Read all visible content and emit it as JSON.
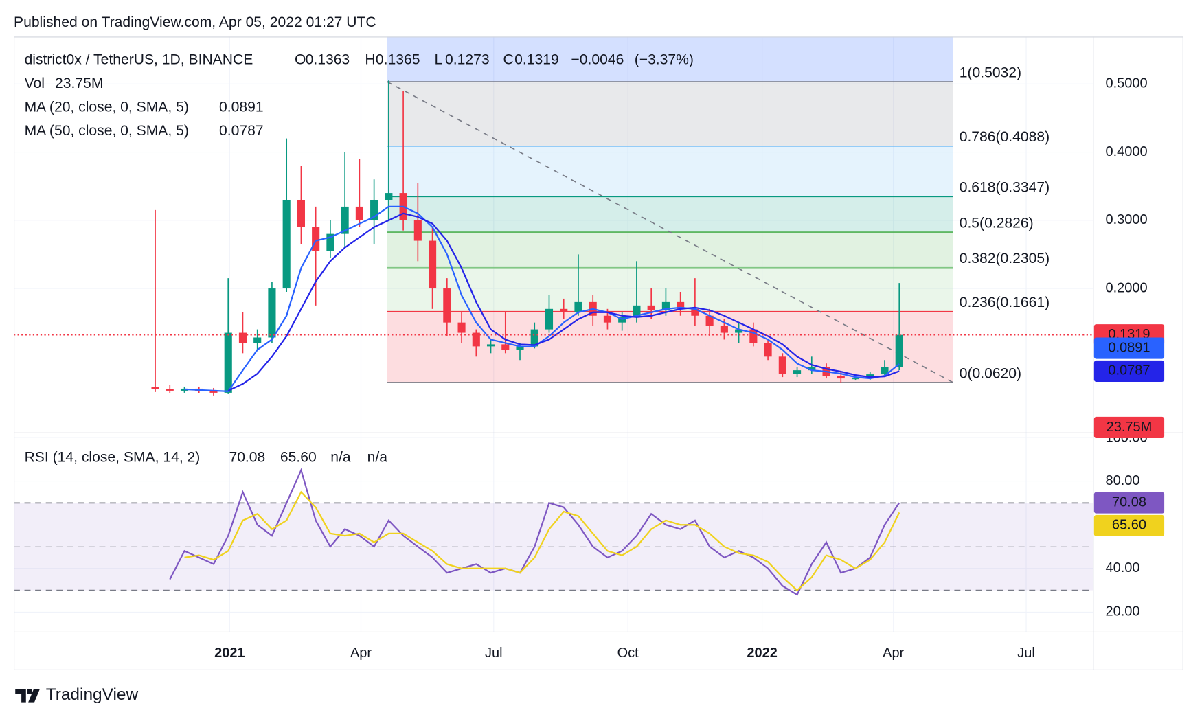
{
  "chart_data": {
    "type": "candlestick",
    "title": "Published on TradingView.com, Apr 05, 2022 01:27 UTC",
    "legend": {
      "symbol": "district0x / TetherUS, 1D, BINANCE",
      "o_label": "O",
      "open": 0.1363,
      "h_label": "H",
      "high": 0.1365,
      "l_label": "L",
      "low": 0.1273,
      "c_label": "C",
      "close": 0.1319,
      "change": {
        "value": -0.0046,
        "label": "−0.0046"
      },
      "change_percent": {
        "value": -3.37,
        "label": "(−3.37%)"
      },
      "volume_name": "Vol",
      "volume": {
        "value": 23750000,
        "label": "23.75M"
      }
    },
    "x": [
      "2020-11-11",
      "2020-11-21",
      "2020-12-01",
      "2020-12-11",
      "2020-12-21",
      "2020-12-31",
      "2021-01-10",
      "2021-01-20",
      "2021-01-30",
      "2021-02-09",
      "2021-02-19",
      "2021-03-01",
      "2021-03-11",
      "2021-03-21",
      "2021-03-31",
      "2021-04-10",
      "2021-04-20",
      "2021-04-30",
      "2021-05-10",
      "2021-05-20",
      "2021-05-30",
      "2021-06-09",
      "2021-06-19",
      "2021-06-29",
      "2021-07-09",
      "2021-07-19",
      "2021-07-29",
      "2021-08-08",
      "2021-08-18",
      "2021-08-28",
      "2021-09-07",
      "2021-09-17",
      "2021-09-27",
      "2021-10-07",
      "2021-10-17",
      "2021-10-27",
      "2021-11-06",
      "2021-11-16",
      "2021-11-26",
      "2021-12-06",
      "2021-12-16",
      "2021-12-26",
      "2022-01-05",
      "2022-01-15",
      "2022-01-25",
      "2022-02-04",
      "2022-02-14",
      "2022-02-24",
      "2022-03-06",
      "2022-03-16",
      "2022-03-26",
      "2022-04-05"
    ],
    "open": [
      0.055,
      0.052,
      0.05,
      0.053,
      0.049,
      0.047,
      0.135,
      0.12,
      0.128,
      0.2,
      0.33,
      0.29,
      0.255,
      0.28,
      0.32,
      0.3,
      0.33,
      0.34,
      0.3,
      0.27,
      0.2,
      0.15,
      0.135,
      0.115,
      0.118,
      0.11,
      0.115,
      0.14,
      0.17,
      0.165,
      0.18,
      0.16,
      0.15,
      0.158,
      0.175,
      0.168,
      0.18,
      0.17,
      0.16,
      0.145,
      0.135,
      0.14,
      0.12,
      0.1,
      0.075,
      0.08,
      0.085,
      0.072,
      0.068,
      0.068,
      0.074,
      0.085
    ],
    "high": [
      0.315,
      0.058,
      0.056,
      0.056,
      0.054,
      0.215,
      0.165,
      0.14,
      0.21,
      0.42,
      0.38,
      0.32,
      0.3,
      0.4,
      0.39,
      0.36,
      0.505,
      0.49,
      0.355,
      0.29,
      0.215,
      0.165,
      0.14,
      0.125,
      0.165,
      0.12,
      0.15,
      0.19,
      0.185,
      0.25,
      0.19,
      0.17,
      0.165,
      0.24,
      0.2,
      0.2,
      0.195,
      0.215,
      0.17,
      0.155,
      0.15,
      0.15,
      0.125,
      0.105,
      0.085,
      0.1,
      0.09,
      0.078,
      0.072,
      0.078,
      0.095,
      0.208
    ],
    "low": [
      0.048,
      0.046,
      0.047,
      0.046,
      0.043,
      0.045,
      0.105,
      0.108,
      0.12,
      0.195,
      0.265,
      0.175,
      0.245,
      0.26,
      0.29,
      0.265,
      0.3,
      0.285,
      0.24,
      0.17,
      0.13,
      0.12,
      0.1,
      0.105,
      0.105,
      0.095,
      0.112,
      0.135,
      0.155,
      0.16,
      0.145,
      0.14,
      0.138,
      0.15,
      0.155,
      0.16,
      0.16,
      0.145,
      0.13,
      0.125,
      0.12,
      0.115,
      0.095,
      0.07,
      0.07,
      0.075,
      0.068,
      0.062,
      0.065,
      0.066,
      0.072,
      0.08
    ],
    "close": [
      0.052,
      0.05,
      0.053,
      0.049,
      0.047,
      0.135,
      0.12,
      0.128,
      0.2,
      0.33,
      0.29,
      0.255,
      0.28,
      0.32,
      0.3,
      0.33,
      0.34,
      0.3,
      0.27,
      0.2,
      0.15,
      0.135,
      0.115,
      0.118,
      0.11,
      0.115,
      0.14,
      0.17,
      0.165,
      0.18,
      0.16,
      0.15,
      0.158,
      0.175,
      0.168,
      0.18,
      0.17,
      0.16,
      0.145,
      0.135,
      0.14,
      0.12,
      0.1,
      0.075,
      0.08,
      0.085,
      0.072,
      0.068,
      0.068,
      0.074,
      0.085,
      0.1319
    ],
    "up_color": "#089981",
    "down_color": "#f23645",
    "series": [
      {
        "name": "MA (20, close, 0, SMA, 5)",
        "color": "#2962ff",
        "values": [
          null,
          null,
          0.052,
          0.051,
          0.05,
          0.049,
          0.08,
          0.11,
          0.125,
          0.16,
          0.23,
          0.27,
          0.275,
          0.285,
          0.295,
          0.305,
          0.32,
          0.32,
          0.31,
          0.29,
          0.25,
          0.19,
          0.15,
          0.125,
          0.12,
          0.115,
          0.115,
          0.13,
          0.15,
          0.165,
          0.17,
          0.165,
          0.155,
          0.16,
          0.165,
          0.17,
          0.172,
          0.17,
          0.16,
          0.15,
          0.14,
          0.135,
          0.125,
          0.11,
          0.09,
          0.08,
          0.078,
          0.075,
          0.07,
          0.068,
          0.072,
          0.0891
        ]
      },
      {
        "name": "MA (50, close, 0, SMA, 5)",
        "color": "#2424e8",
        "values": [
          null,
          null,
          null,
          null,
          null,
          0.05,
          0.06,
          0.075,
          0.1,
          0.13,
          0.17,
          0.21,
          0.24,
          0.26,
          0.275,
          0.29,
          0.3,
          0.31,
          0.305,
          0.295,
          0.27,
          0.23,
          0.18,
          0.14,
          0.125,
          0.118,
          0.117,
          0.125,
          0.14,
          0.155,
          0.165,
          0.165,
          0.16,
          0.158,
          0.16,
          0.165,
          0.17,
          0.172,
          0.168,
          0.16,
          0.15,
          0.14,
          0.13,
          0.118,
          0.1,
          0.088,
          0.082,
          0.078,
          0.073,
          0.07,
          0.071,
          0.0787
        ]
      }
    ],
    "xlim": [
      "2020-08-06",
      "2022-08-16"
    ],
    "xticks": [
      {
        "value": "2021-01-01",
        "label": "2021"
      },
      {
        "value": "2021-04-01",
        "label": "Apr"
      },
      {
        "value": "2021-07-01",
        "label": "Jul"
      },
      {
        "value": "2021-10-01",
        "label": "Oct"
      },
      {
        "value": "2022-01-01",
        "label": "2022"
      },
      {
        "value": "2022-04-01",
        "label": "Apr"
      },
      {
        "value": "2022-07-01",
        "label": "Jul"
      }
    ],
    "ylim": [
      -0.0118,
      0.5694
    ],
    "yticks": [
      {
        "value": 0.2,
        "label": "0.2000"
      },
      {
        "value": 0.3,
        "label": "0.3000"
      },
      {
        "value": 0.4,
        "label": "0.4000"
      },
      {
        "value": 0.5,
        "label": "0.5000"
      }
    ],
    "grid": true,
    "fibonacci": {
      "start": "2021-04-19",
      "end": "2022-05-12",
      "extension_color": "#2962ff",
      "trend_color": "#787b86",
      "levels": [
        {
          "price": 0.5032,
          "label": "1(0.5032)",
          "color": "#787b86"
        },
        {
          "price": 0.4088,
          "label": "0.786(0.4088)",
          "color": "#64b5f6"
        },
        {
          "price": 0.3347,
          "label": "0.618(0.3347)",
          "color": "#089981"
        },
        {
          "price": 0.2826,
          "label": "0.5(0.2826)",
          "color": "#4caf50"
        },
        {
          "price": 0.2305,
          "label": "0.382(0.2305)",
          "color": "#81c784"
        },
        {
          "price": 0.1661,
          "label": "0.236(0.1661)",
          "color": "#f23645"
        },
        {
          "price": 0.062,
          "label": "0(0.0620)",
          "color": "#787b86"
        }
      ]
    },
    "rsi": {
      "name": "RSI (14, close, SMA, 14, 2)",
      "value": 70.08,
      "ma_value": {
        "value": 65.6,
        "label": "65.60"
      },
      "na": [
        "n/a",
        "n/a"
      ],
      "series": [
        {
          "color": "#7e57c2",
          "values": [
            null,
            35,
            48,
            45,
            42,
            55,
            75,
            60,
            55,
            70,
            85,
            62,
            50,
            58,
            55,
            50,
            62,
            55,
            50,
            45,
            38,
            40,
            42,
            38,
            40,
            38,
            50,
            70,
            68,
            60,
            50,
            45,
            48,
            55,
            65,
            60,
            58,
            62,
            50,
            45,
            48,
            45,
            40,
            32,
            28,
            42,
            52,
            38,
            40,
            45,
            60,
            70.08
          ]
        },
        {
          "color": "#f0d21e",
          "values": [
            null,
            null,
            45,
            46,
            44,
            48,
            62,
            65,
            58,
            62,
            75,
            68,
            56,
            55,
            56,
            52,
            56,
            56,
            52,
            48,
            42,
            40,
            40,
            40,
            40,
            38,
            45,
            58,
            66,
            64,
            56,
            48,
            46,
            50,
            58,
            62,
            60,
            60,
            56,
            50,
            47,
            46,
            43,
            36,
            30,
            36,
            46,
            44,
            40,
            44,
            52,
            65.6
          ]
        }
      ],
      "ylim": [
        10.9,
        102.1
      ],
      "yticks": [
        {
          "value": 20,
          "label": "20.00"
        },
        {
          "value": 40,
          "label": "40.00"
        },
        {
          "value": 80,
          "label": "80.00"
        },
        {
          "value": 100,
          "label": "100.00"
        }
      ],
      "bands": {
        "upper": 70,
        "middle": 50,
        "lower": 30,
        "color": "#7e57c2"
      }
    }
  },
  "footer": {
    "brand": "TradingView"
  }
}
